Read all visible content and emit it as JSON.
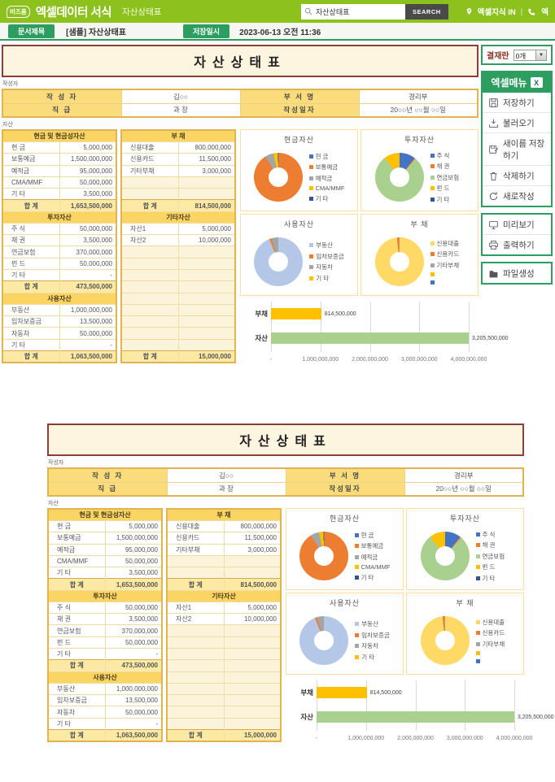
{
  "header": {
    "logo_prefix": "비즈폼",
    "logo_title": "엑셀데이터 서식",
    "page_subtitle": "자산상태표",
    "search": {
      "value": "자산상태표",
      "button": "SEARCH"
    },
    "links": {
      "knowledge": "엑셀지식 IN",
      "divider": "|",
      "phone_partial": "엑"
    }
  },
  "infobar": {
    "doc_title_label": "문서제목",
    "doc_title": "[샘플] 자산상태표",
    "saved_label": "저장일시",
    "saved_value": "2023-06-13  오전 11:36"
  },
  "sidebar": {
    "approval_label": "결재란",
    "approval_count": "0개",
    "menu_title": "엑셀메뉴",
    "groups": [
      {
        "items": [
          {
            "icon": "save",
            "label": "저장하기"
          },
          {
            "icon": "load",
            "label": "불러오기"
          },
          {
            "icon": "save-as",
            "label": "새이름 저장하기"
          },
          {
            "icon": "trash",
            "label": "삭제하기"
          },
          {
            "icon": "refresh",
            "label": "새로작성"
          }
        ]
      },
      {
        "items": [
          {
            "icon": "preview",
            "label": "미리보기"
          },
          {
            "icon": "printer",
            "label": "출력하기"
          }
        ]
      },
      {
        "items": [
          {
            "icon": "folder",
            "label": "파일생성"
          }
        ]
      }
    ]
  },
  "doc": {
    "title": "자산상태표",
    "writer_section_label": "작성자",
    "writer_rows": [
      {
        "cells": [
          {
            "t": "h",
            "text": "작 성 자"
          },
          {
            "t": "v",
            "text": "김○○"
          },
          {
            "t": "h",
            "text": "부 서 명"
          },
          {
            "t": "v",
            "text": "경리부"
          }
        ]
      },
      {
        "cells": [
          {
            "t": "h",
            "text": "직    급"
          },
          {
            "t": "v",
            "text": "과 장"
          },
          {
            "t": "h",
            "text": "작성일자"
          },
          {
            "t": "v",
            "text": "20○○년 ○○월 ○○일"
          }
        ]
      }
    ],
    "asset_section_label": "자산",
    "left_table": [
      {
        "type": "head",
        "label": "현금 및 현금성자산"
      },
      {
        "type": "row",
        "label": "현 금",
        "value": "5,000,000"
      },
      {
        "type": "row",
        "label": "보통예금",
        "value": "1,500,000,000"
      },
      {
        "type": "row",
        "label": "예적금",
        "value": "95,000,000"
      },
      {
        "type": "row",
        "label": "CMA/MMF",
        "value": "50,000,000"
      },
      {
        "type": "row",
        "label": "기 타",
        "value": "3,500,000"
      },
      {
        "type": "total",
        "label": "합 계",
        "value": "1,653,500,000"
      },
      {
        "type": "head",
        "label": "투자자산"
      },
      {
        "type": "row",
        "label": "주 식",
        "value": "50,000,000"
      },
      {
        "type": "row",
        "label": "채 권",
        "value": "3,500,000"
      },
      {
        "type": "row",
        "label": "연금보험",
        "value": "370,000,000"
      },
      {
        "type": "row",
        "label": "펀 드",
        "value": "50,000,000"
      },
      {
        "type": "row",
        "label": "기 타",
        "value": "-"
      },
      {
        "type": "total",
        "label": "합 계",
        "value": "473,500,000"
      },
      {
        "type": "head",
        "label": "사용자산"
      },
      {
        "type": "row",
        "label": "부동산",
        "value": "1,000,000,000"
      },
      {
        "type": "row",
        "label": "임차보증금",
        "value": "13,500,000"
      },
      {
        "type": "row",
        "label": "자동차",
        "value": "50,000,000"
      },
      {
        "type": "row",
        "label": "기 타",
        "value": "-"
      },
      {
        "type": "total",
        "label": "합 계",
        "value": "1,063,500,000"
      }
    ],
    "right_table": [
      {
        "type": "head",
        "label": "부 채"
      },
      {
        "type": "row",
        "label": "신용대출",
        "value": "800,000,000"
      },
      {
        "type": "row",
        "label": "신용카드",
        "value": "11,500,000"
      },
      {
        "type": "row",
        "label": "기타부채",
        "value": "3,000,000"
      },
      {
        "type": "empty"
      },
      {
        "type": "empty"
      },
      {
        "type": "total",
        "label": "합 계",
        "value": "814,500,000"
      },
      {
        "type": "head",
        "label": "기타자산"
      },
      {
        "type": "row",
        "label": "자산1",
        "value": "5,000,000"
      },
      {
        "type": "row",
        "label": "자산2",
        "value": "10,000,000"
      },
      {
        "type": "empty"
      },
      {
        "type": "empty"
      },
      {
        "type": "empty"
      },
      {
        "type": "empty"
      },
      {
        "type": "empty"
      },
      {
        "type": "empty"
      },
      {
        "type": "empty"
      },
      {
        "type": "empty"
      },
      {
        "type": "empty"
      },
      {
        "type": "total",
        "label": "합 계",
        "value": "15,000,000"
      }
    ]
  },
  "chart_data": [
    {
      "type": "pie",
      "subtype": "donut",
      "title": "현금자산",
      "labels": [
        "현 금",
        "보통예금",
        "예적금",
        "CMA/MMF",
        "기 타"
      ],
      "values": [
        5000000,
        1500000000,
        95000000,
        50000000,
        3500000
      ],
      "colors": [
        "#4472C4",
        "#ED7D31",
        "#A5A5A5",
        "#FFC000",
        "#2F5597"
      ],
      "legend_position": "right"
    },
    {
      "type": "pie",
      "subtype": "donut",
      "title": "투자자산",
      "labels": [
        "주 식",
        "채 권",
        "연금보험",
        "펀 드",
        "기 타"
      ],
      "values": [
        50000000,
        3500000,
        370000000,
        50000000,
        0
      ],
      "colors": [
        "#4472C4",
        "#ED7D31",
        "#A9D08E",
        "#FFC000",
        "#2F5597"
      ],
      "legend_position": "right"
    },
    {
      "type": "pie",
      "subtype": "donut",
      "title": "사용자산",
      "labels": [
        "부동산",
        "임차보증금",
        "자동차",
        "기 타"
      ],
      "values": [
        1000000000,
        13500000,
        50000000,
        0
      ],
      "colors": [
        "#B4C7E7",
        "#ED7D31",
        "#A5A5A5",
        "#FFC000"
      ],
      "legend_position": "right"
    },
    {
      "type": "pie",
      "subtype": "donut",
      "title": "부 채",
      "labels": [
        "신용대출",
        "신용카드",
        "기타부채",
        "",
        ""
      ],
      "values": [
        800000000,
        11500000,
        3000000,
        0,
        0
      ],
      "colors": [
        "#FFD966",
        "#ED7D31",
        "#A5A5A5",
        "#FFC000",
        "#4472C4"
      ],
      "legend_position": "right"
    },
    {
      "type": "bar",
      "orientation": "horizontal",
      "categories": [
        "부채",
        "자산"
      ],
      "values": [
        814500000,
        3205500000
      ],
      "value_labels": [
        "814,500,000",
        "3,205,500,000"
      ],
      "colors": [
        "#FFC000",
        "#A9D08E"
      ],
      "xlim": [
        0,
        4000000000
      ],
      "x_ticks": [
        "-",
        "1,000,000,000",
        "2,000,000,000",
        "3,000,000,000",
        "4,000,000,000"
      ],
      "grid": true,
      "legend_position": "none"
    }
  ]
}
